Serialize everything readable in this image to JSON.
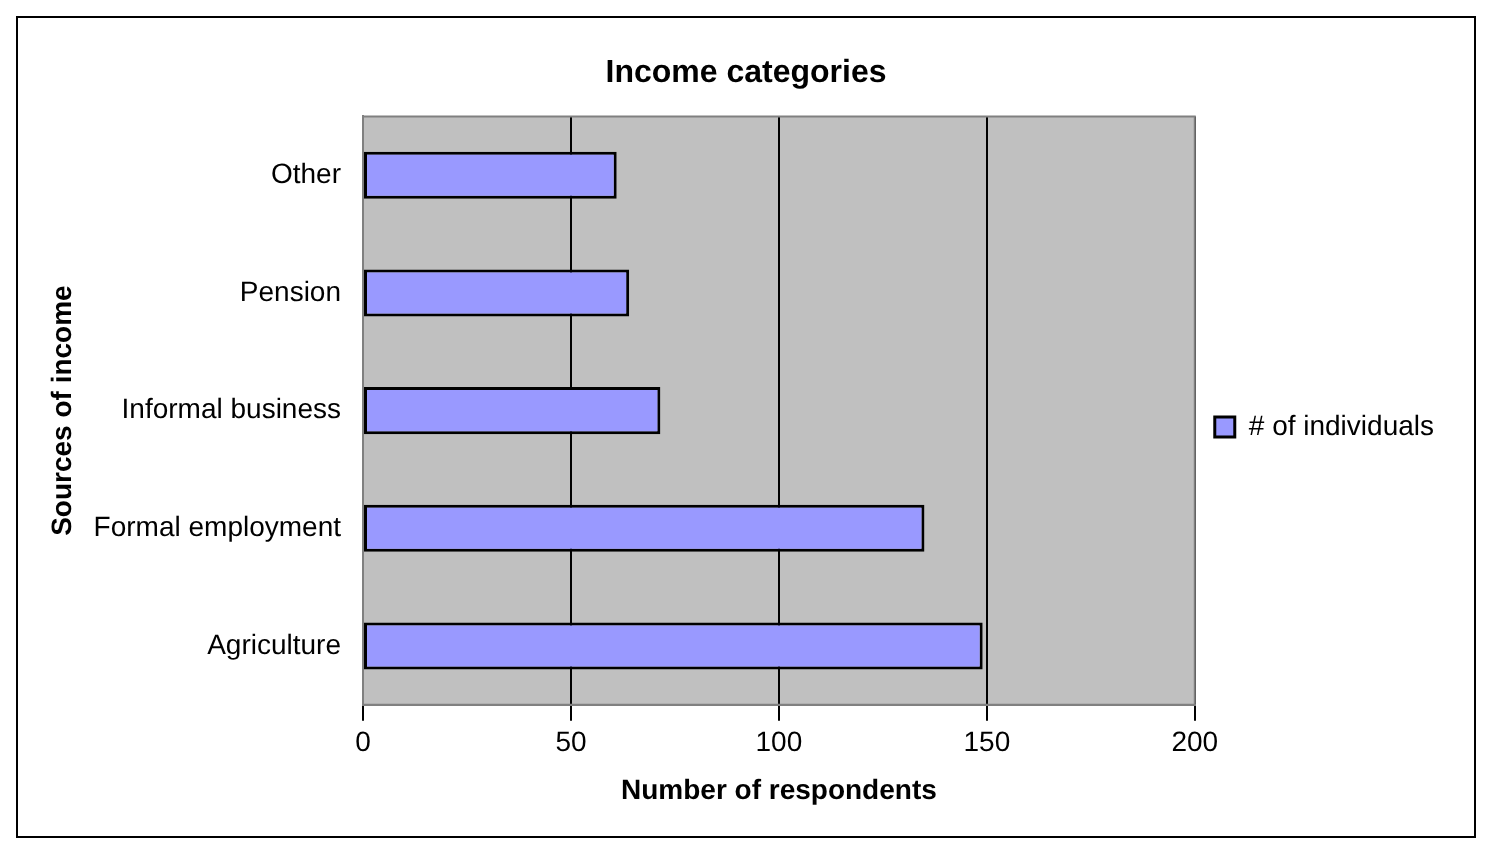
{
  "chart_data": {
    "type": "bar",
    "orientation": "horizontal",
    "title": "Income categories",
    "xlabel": "Number of respondents",
    "ylabel": "Sources of income",
    "categories": [
      "Other",
      "Pension",
      "Informal business",
      "Formal employment",
      "Agriculture"
    ],
    "series": [
      {
        "name": "# of individuals",
        "color": "#9999ff",
        "values": [
          61,
          64,
          71.5,
          135,
          149
        ]
      }
    ],
    "xlim": [
      0,
      200
    ],
    "xticks": [
      0,
      50,
      100,
      150,
      200
    ],
    "grid": "x",
    "legend": "right"
  }
}
